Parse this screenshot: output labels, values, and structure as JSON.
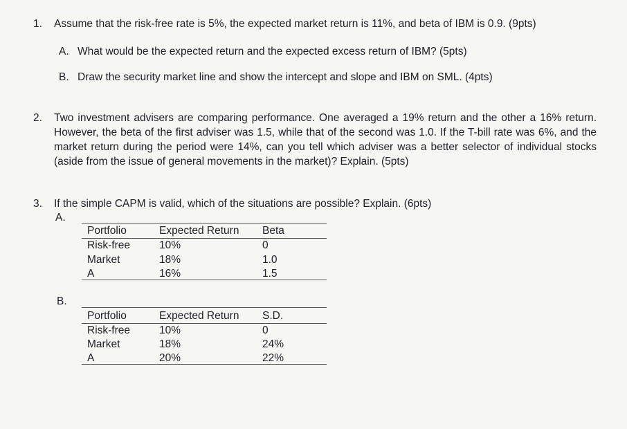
{
  "questions": [
    {
      "number": "1.",
      "text": "Assume that the risk-free rate is 5%, the expected market return is 11%, and beta of IBM is 0.9. (9pts)",
      "parts": [
        {
          "label": "A.",
          "text": "What would be the expected return and the expected excess return of IBM? (5pts)"
        },
        {
          "label": "B.",
          "text": "Draw the security market line and show the intercept and slope and IBM on SML. (4pts)"
        }
      ]
    },
    {
      "number": "2.",
      "text": "Two investment advisers are comparing performance. One averaged a 19% return and the other a 16% return. However, the beta of the first adviser was 1.5, while that of the second was 1.0. If the T-bill rate was 6%, and the market return during the period were 14%, can you tell which adviser was a better selector of individual stocks (aside from the issue of general movements in the market)? Explain. (5pts)"
    },
    {
      "number": "3.",
      "text": "If the simple CAPM is valid, which of the situations are possible? Explain. (6pts)",
      "parts": [
        {
          "label": "A.",
          "table": {
            "header": [
              "Portfolio",
              "Expected Return",
              "Beta"
            ],
            "rows": [
              [
                "Risk-free",
                "10%",
                "0"
              ],
              [
                "Market",
                "18%",
                "1.0"
              ],
              [
                "A",
                "16%",
                "1.5"
              ]
            ]
          }
        },
        {
          "label": "B.",
          "table": {
            "header": [
              "Portfolio",
              "Expected Return",
              "S.D."
            ],
            "rows": [
              [
                "Risk-free",
                "10%",
                "0"
              ],
              [
                "Market",
                "18%",
                "24%"
              ],
              [
                "A",
                "20%",
                "22%"
              ]
            ]
          }
        }
      ]
    }
  ]
}
